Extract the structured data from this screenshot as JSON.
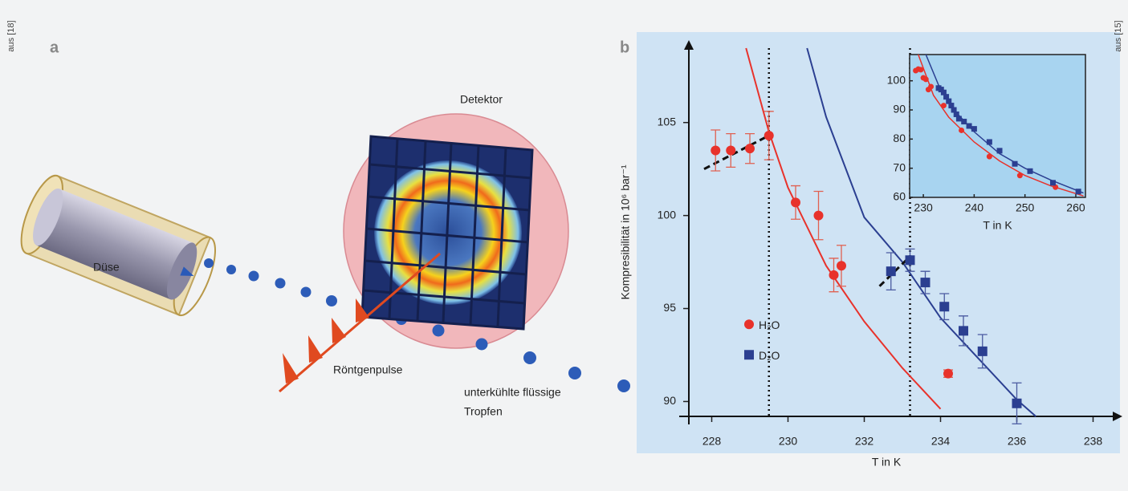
{
  "panel_a": {
    "source": "aus [18]",
    "label": "a",
    "detector": "Detektor",
    "nozzle": "Düse",
    "pulses": "Röntgenpulse",
    "drops": [
      "unterkühlte flüssige",
      "Tropfen"
    ]
  },
  "panel_b": {
    "source": "aus [15]",
    "label": "b"
  },
  "chart_data": [
    {
      "type": "scatter",
      "x_label": "T in K",
      "y_label": "Kompresibilität in 10⁶ bar⁻¹",
      "xlim": [
        227.4,
        238.6
      ],
      "ylim": [
        89.2,
        109
      ],
      "xticks": [
        228,
        230,
        232,
        234,
        236,
        238
      ],
      "yticks": [
        90,
        95,
        100,
        105
      ],
      "legend": "left",
      "series": [
        {
          "name": "H₂O",
          "color": "#e8322b",
          "marker": "circle",
          "x": [
            228.1,
            228.5,
            229.0,
            229.5,
            230.2,
            230.8,
            231.2,
            231.4,
            234.2
          ],
          "values": [
            103.5,
            103.5,
            103.6,
            104.3,
            100.7,
            100.0,
            96.8,
            97.3,
            91.5
          ],
          "errors": [
            1.1,
            0.9,
            0.8,
            1.3,
            0.9,
            1.3,
            0.9,
            1.1,
            0.2
          ]
        },
        {
          "name": "D₂O",
          "color": "#2b3f91",
          "marker": "square",
          "x": [
            232.7,
            233.2,
            233.6,
            234.1,
            234.6,
            235.1,
            236.0
          ],
          "values": [
            97.0,
            97.6,
            96.4,
            95.1,
            93.8,
            92.7,
            89.9
          ],
          "errors": [
            1.0,
            0.6,
            0.6,
            0.7,
            0.8,
            0.9,
            1.1
          ]
        }
      ],
      "fits": [
        {
          "color": "#e8322b",
          "x": [
            228.9,
            229.5,
            230,
            231,
            232,
            233,
            234
          ],
          "values": [
            109,
            104.5,
            101.5,
            97.3,
            94.3,
            91.8,
            89.6
          ]
        },
        {
          "color": "#2b3f91",
          "x": [
            230.5,
            231,
            232,
            233,
            234,
            235,
            236,
            236.5
          ],
          "values": [
            109,
            105.3,
            99.9,
            97.5,
            94.5,
            92.3,
            90.1,
            89.2
          ]
        }
      ],
      "guides": [
        {
          "x": [
            227.8,
            229.5
          ],
          "values": [
            102.5,
            104.3
          ]
        },
        {
          "x": [
            232.4,
            233.2
          ],
          "values": [
            96.2,
            97.8
          ]
        }
      ],
      "vlines": [
        229.5,
        233.2
      ]
    },
    {
      "type": "scatter",
      "x_label": "T in K",
      "xlim": [
        227.3,
        261.9
      ],
      "ylim": [
        60,
        109
      ],
      "xticks": [
        230,
        240,
        250,
        260
      ],
      "yticks": [
        60,
        70,
        80,
        90,
        100
      ],
      "background": "#a8d4f0",
      "series": [
        {
          "color": "#e8322b",
          "marker": "circle",
          "x": [
            228.5,
            229,
            229.5,
            230,
            230.5,
            231,
            231.5,
            234,
            237.5,
            243,
            249,
            256
          ],
          "values": [
            103.5,
            104,
            103.8,
            101,
            100.5,
            97,
            98,
            91.5,
            83,
            74,
            67.5,
            63.5
          ]
        },
        {
          "color": "#2b3f91",
          "marker": "square",
          "x": [
            233,
            233.5,
            234,
            234.5,
            235,
            235.5,
            236,
            236.5,
            237,
            238,
            239,
            240,
            243,
            245,
            248,
            251,
            255.5,
            260.5
          ],
          "values": [
            97.5,
            97,
            96,
            94.5,
            93,
            91.5,
            90,
            88.5,
            87,
            86,
            84.5,
            83.5,
            79,
            76,
            71.5,
            69,
            65,
            62
          ]
        }
      ],
      "fits": [
        {
          "color": "#e8322b",
          "x": [
            229,
            232,
            235,
            240,
            245,
            250,
            255,
            261.5
          ],
          "values": [
            109,
            95,
            87.5,
            79,
            72.5,
            67.5,
            64,
            60.5
          ]
        },
        {
          "color": "#2b3f91",
          "x": [
            230.5,
            233,
            236,
            240,
            245,
            250,
            255,
            261.5
          ],
          "values": [
            109,
            98.5,
            90,
            82.5,
            75,
            70,
            66,
            61.5
          ]
        }
      ]
    }
  ]
}
